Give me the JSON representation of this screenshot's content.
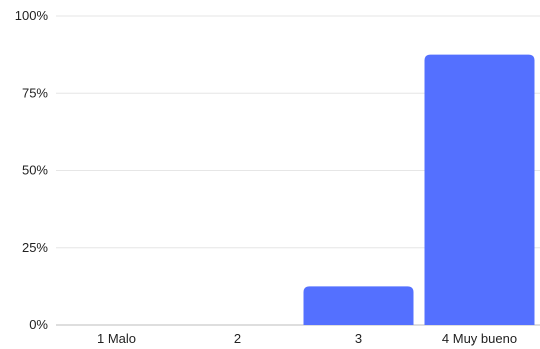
{
  "chart_data": {
    "type": "bar",
    "categories": [
      "1 Malo",
      "2",
      "3",
      "4 Muy bueno"
    ],
    "values": [
      0,
      0,
      12.5,
      87.5
    ],
    "ylim": [
      0,
      100
    ],
    "yticks": [
      0,
      25,
      50,
      75,
      100
    ],
    "ytick_labels": [
      "0%",
      "25%",
      "50%",
      "75%",
      "100%"
    ],
    "grid": true,
    "legend": "none",
    "bar_color": "#5470ff",
    "grid_color": "#e6e6e6",
    "baseline_color": "#bdbdbd"
  }
}
